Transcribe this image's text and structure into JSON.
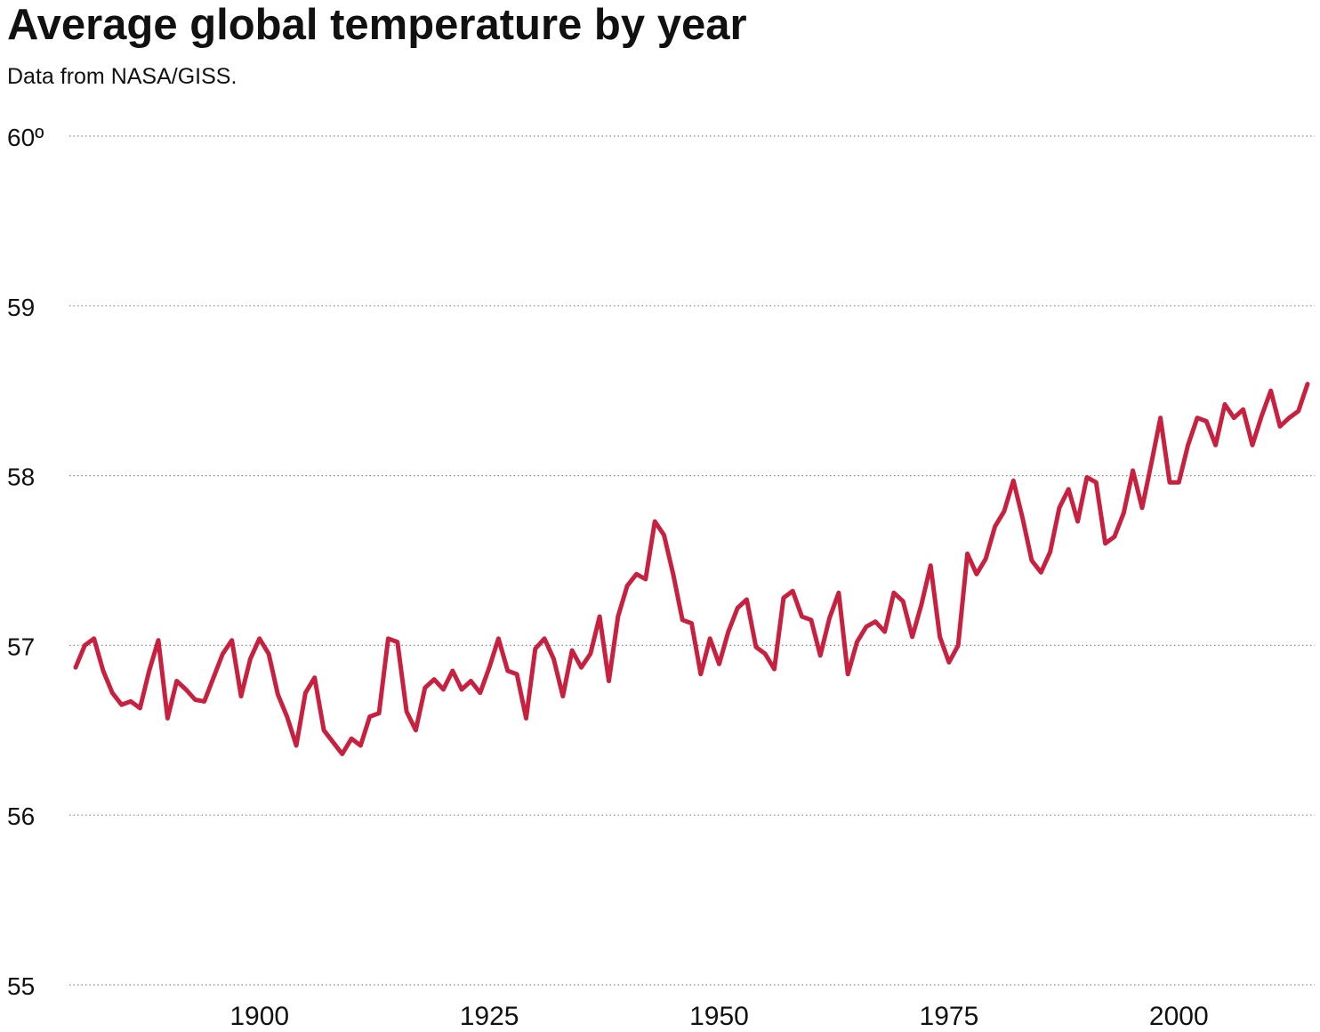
{
  "chart_data": {
    "type": "line",
    "title": "Average global temperature by year",
    "subtitle": "Data from NASA/GISS.",
    "x": [
      1880,
      1881,
      1882,
      1883,
      1884,
      1885,
      1886,
      1887,
      1888,
      1889,
      1890,
      1891,
      1892,
      1893,
      1894,
      1895,
      1896,
      1897,
      1898,
      1899,
      1900,
      1901,
      1902,
      1903,
      1904,
      1905,
      1906,
      1907,
      1908,
      1909,
      1910,
      1911,
      1912,
      1913,
      1914,
      1915,
      1916,
      1917,
      1918,
      1919,
      1920,
      1921,
      1922,
      1923,
      1924,
      1925,
      1926,
      1927,
      1928,
      1929,
      1930,
      1931,
      1932,
      1933,
      1934,
      1935,
      1936,
      1937,
      1938,
      1939,
      1940,
      1941,
      1942,
      1943,
      1944,
      1945,
      1946,
      1947,
      1948,
      1949,
      1950,
      1951,
      1952,
      1953,
      1954,
      1955,
      1956,
      1957,
      1958,
      1959,
      1960,
      1961,
      1962,
      1963,
      1964,
      1965,
      1966,
      1967,
      1968,
      1969,
      1970,
      1971,
      1972,
      1973,
      1974,
      1975,
      1976,
      1977,
      1978,
      1979,
      1980,
      1981,
      1982,
      1983,
      1984,
      1985,
      1986,
      1987,
      1988,
      1989,
      1990,
      1991,
      1992,
      1993,
      1994,
      1995,
      1996,
      1997,
      1998,
      1999,
      2000,
      2001,
      2002,
      2003,
      2004,
      2005,
      2006,
      2007,
      2008,
      2009,
      2010,
      2011,
      2012,
      2013,
      2014
    ],
    "values": [
      56.87,
      57.0,
      57.04,
      56.85,
      56.72,
      56.65,
      56.67,
      56.63,
      56.85,
      57.03,
      56.57,
      56.79,
      56.74,
      56.68,
      56.67,
      56.81,
      56.95,
      57.03,
      56.7,
      56.92,
      57.04,
      56.95,
      56.71,
      56.58,
      56.41,
      56.72,
      56.81,
      56.5,
      56.43,
      56.36,
      56.45,
      56.41,
      56.58,
      56.6,
      57.04,
      57.02,
      56.61,
      56.5,
      56.75,
      56.8,
      56.74,
      56.85,
      56.74,
      56.79,
      56.72,
      56.87,
      57.04,
      56.85,
      56.83,
      56.57,
      56.98,
      57.04,
      56.92,
      56.7,
      56.97,
      56.87,
      56.95,
      57.17,
      56.79,
      57.17,
      57.35,
      57.42,
      57.39,
      57.73,
      57.65,
      57.42,
      57.15,
      57.13,
      56.83,
      57.04,
      56.89,
      57.08,
      57.22,
      57.27,
      56.99,
      56.95,
      56.86,
      57.28,
      57.32,
      57.17,
      57.15,
      56.94,
      57.16,
      57.31,
      56.83,
      57.02,
      57.11,
      57.14,
      57.08,
      57.31,
      57.26,
      57.05,
      57.24,
      57.47,
      57.05,
      56.9,
      57.0,
      57.54,
      57.42,
      57.51,
      57.7,
      57.79,
      57.97,
      57.75,
      57.5,
      57.43,
      57.55,
      57.81,
      57.92,
      57.73,
      57.99,
      57.96,
      57.6,
      57.64,
      57.78,
      58.03,
      57.81,
      58.07,
      58.34,
      57.96,
      57.96,
      58.18,
      58.34,
      58.32,
      58.18,
      58.42,
      58.34,
      58.39,
      58.18,
      58.35,
      58.5,
      58.29,
      58.34,
      58.38,
      58.54
    ],
    "color": "#c8203f",
    "xlim": [
      1880,
      2014
    ],
    "xticks": [
      1900,
      1925,
      1950,
      1975,
      2000
    ],
    "ylim": [
      55,
      60
    ],
    "yticks": [
      55,
      56,
      57,
      58,
      59,
      {
        "value": 60,
        "label": "60º"
      }
    ],
    "grid": true
  }
}
